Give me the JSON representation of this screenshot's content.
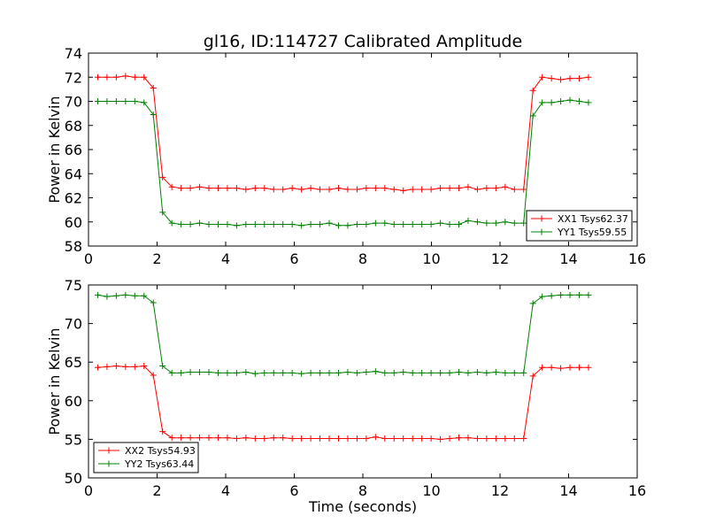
{
  "title": "gl16, ID:114727 Calibrated Amplitude",
  "chart_data": [
    {
      "type": "line",
      "ylabel": "Power in Kelvin",
      "xlabel": "",
      "xlim": [
        0,
        16
      ],
      "ylim": [
        58,
        74
      ],
      "xticks": [
        0,
        2,
        4,
        6,
        8,
        10,
        12,
        14,
        16
      ],
      "yticks": [
        58,
        60,
        62,
        64,
        66,
        68,
        70,
        72,
        74
      ],
      "legend_position": "lower-right",
      "x": [
        0.27,
        0.54,
        0.81,
        1.08,
        1.35,
        1.62,
        1.89,
        2.16,
        2.43,
        2.7,
        2.97,
        3.24,
        3.51,
        3.78,
        4.05,
        4.32,
        4.59,
        4.86,
        5.13,
        5.4,
        5.67,
        5.94,
        6.21,
        6.48,
        6.75,
        7.02,
        7.29,
        7.56,
        7.83,
        8.1,
        8.37,
        8.64,
        8.91,
        9.18,
        9.45,
        9.72,
        9.99,
        10.26,
        10.53,
        10.8,
        11.07,
        11.34,
        11.61,
        11.88,
        12.15,
        12.42,
        12.69,
        12.96,
        13.23,
        13.5,
        13.77,
        14.04,
        14.31,
        14.58
      ],
      "series": [
        {
          "name": "XX1 Tsys62.37",
          "color": "#ff0000",
          "values": [
            72.0,
            72.0,
            72.0,
            72.1,
            72.0,
            72.0,
            71.1,
            63.7,
            62.9,
            62.8,
            62.8,
            62.9,
            62.8,
            62.8,
            62.8,
            62.8,
            62.7,
            62.8,
            62.8,
            62.7,
            62.7,
            62.8,
            62.7,
            62.8,
            62.7,
            62.7,
            62.8,
            62.7,
            62.7,
            62.8,
            62.8,
            62.8,
            62.7,
            62.6,
            62.7,
            62.7,
            62.7,
            62.8,
            62.8,
            62.8,
            62.9,
            62.7,
            62.8,
            62.8,
            62.9,
            62.7,
            62.7,
            70.9,
            72.0,
            71.9,
            71.8,
            71.9,
            71.9,
            72.0
          ]
        },
        {
          "name": "YY1 Tsys59.55",
          "color": "#008000",
          "values": [
            70.0,
            70.0,
            70.0,
            70.0,
            70.0,
            69.9,
            68.9,
            60.8,
            59.9,
            59.8,
            59.8,
            59.9,
            59.8,
            59.8,
            59.8,
            59.7,
            59.8,
            59.8,
            59.8,
            59.8,
            59.8,
            59.8,
            59.7,
            59.8,
            59.8,
            59.9,
            59.7,
            59.7,
            59.8,
            59.8,
            59.9,
            59.9,
            59.8,
            59.8,
            59.8,
            59.8,
            59.8,
            59.9,
            59.8,
            59.8,
            60.1,
            60.0,
            59.9,
            59.9,
            60.0,
            59.9,
            59.9,
            68.8,
            69.9,
            69.9,
            70.0,
            70.1,
            70.0,
            69.9
          ]
        }
      ]
    },
    {
      "type": "line",
      "ylabel": "Power in Kelvin",
      "xlabel": "Time (seconds)",
      "xlim": [
        0,
        16
      ],
      "ylim": [
        50,
        75
      ],
      "xticks": [
        0,
        2,
        4,
        6,
        8,
        10,
        12,
        14,
        16
      ],
      "yticks": [
        50,
        55,
        60,
        65,
        70,
        75
      ],
      "legend_position": "lower-left",
      "x": [
        0.27,
        0.54,
        0.81,
        1.08,
        1.35,
        1.62,
        1.89,
        2.16,
        2.43,
        2.7,
        2.97,
        3.24,
        3.51,
        3.78,
        4.05,
        4.32,
        4.59,
        4.86,
        5.13,
        5.4,
        5.67,
        5.94,
        6.21,
        6.48,
        6.75,
        7.02,
        7.29,
        7.56,
        7.83,
        8.1,
        8.37,
        8.64,
        8.91,
        9.18,
        9.45,
        9.72,
        9.99,
        10.26,
        10.53,
        10.8,
        11.07,
        11.34,
        11.61,
        11.88,
        12.15,
        12.42,
        12.69,
        12.96,
        13.23,
        13.5,
        13.77,
        14.04,
        14.31,
        14.58
      ],
      "series": [
        {
          "name": "XX2 Tsys54.93",
          "color": "#ff0000",
          "values": [
            64.3,
            64.4,
            64.5,
            64.4,
            64.4,
            64.5,
            63.3,
            56.0,
            55.2,
            55.2,
            55.2,
            55.2,
            55.2,
            55.2,
            55.2,
            55.1,
            55.2,
            55.1,
            55.1,
            55.2,
            55.2,
            55.1,
            55.1,
            55.1,
            55.1,
            55.1,
            55.1,
            55.1,
            55.1,
            55.1,
            55.3,
            55.1,
            55.1,
            55.1,
            55.1,
            55.1,
            55.1,
            55.0,
            55.1,
            55.2,
            55.2,
            55.1,
            55.1,
            55.1,
            55.1,
            55.1,
            55.1,
            63.2,
            64.3,
            64.3,
            64.2,
            64.3,
            64.3,
            64.3
          ]
        },
        {
          "name": "YY2 Tsys63.44",
          "color": "#008000",
          "values": [
            73.7,
            73.5,
            73.6,
            73.7,
            73.6,
            73.6,
            72.7,
            64.5,
            63.6,
            63.6,
            63.7,
            63.7,
            63.7,
            63.6,
            63.6,
            63.6,
            63.7,
            63.5,
            63.6,
            63.6,
            63.6,
            63.6,
            63.5,
            63.6,
            63.6,
            63.6,
            63.6,
            63.7,
            63.6,
            63.7,
            63.8,
            63.6,
            63.6,
            63.7,
            63.6,
            63.6,
            63.6,
            63.6,
            63.6,
            63.7,
            63.6,
            63.7,
            63.6,
            63.7,
            63.6,
            63.6,
            63.6,
            72.6,
            73.5,
            73.6,
            73.7,
            73.7,
            73.7,
            73.7
          ]
        }
      ]
    }
  ]
}
